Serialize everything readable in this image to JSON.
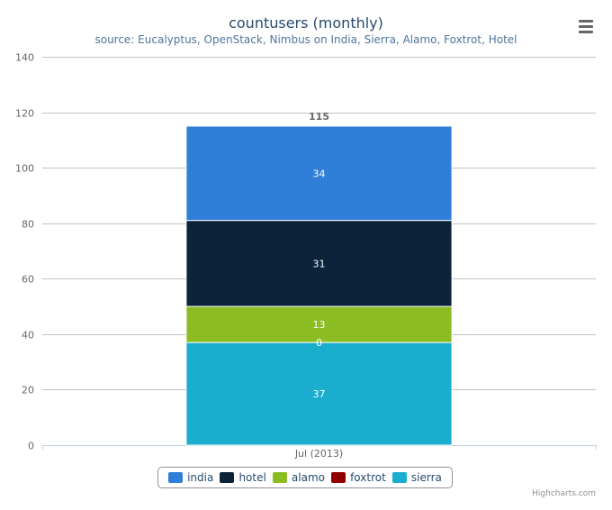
{
  "chart_data": {
    "type": "bar",
    "stacked": true,
    "title": "countusers (monthly)",
    "subtitle": "source: Eucalyptus, OpenStack, Nimbus on India, Sierra, Alamo, Foxtrot, Hotel",
    "categories": [
      "Jul (2013)"
    ],
    "series": [
      {
        "name": "india",
        "values": [
          34
        ],
        "color": "#2f7ed8"
      },
      {
        "name": "hotel",
        "values": [
          31
        ],
        "color": "#0d233a"
      },
      {
        "name": "alamo",
        "values": [
          13
        ],
        "color": "#8bbc21"
      },
      {
        "name": "foxtrot",
        "values": [
          0
        ],
        "color": "#910000"
      },
      {
        "name": "sierra",
        "values": [
          37
        ],
        "color": "#1aadce"
      }
    ],
    "totals": [
      115
    ],
    "ylim": [
      0,
      140
    ],
    "yticks": [
      0,
      20,
      40,
      60,
      80,
      100,
      120,
      140
    ],
    "grid": true,
    "legend_position": "bottom-center"
  },
  "credits": "Highcharts.com",
  "menu_icon": "hamburger-menu-icon"
}
